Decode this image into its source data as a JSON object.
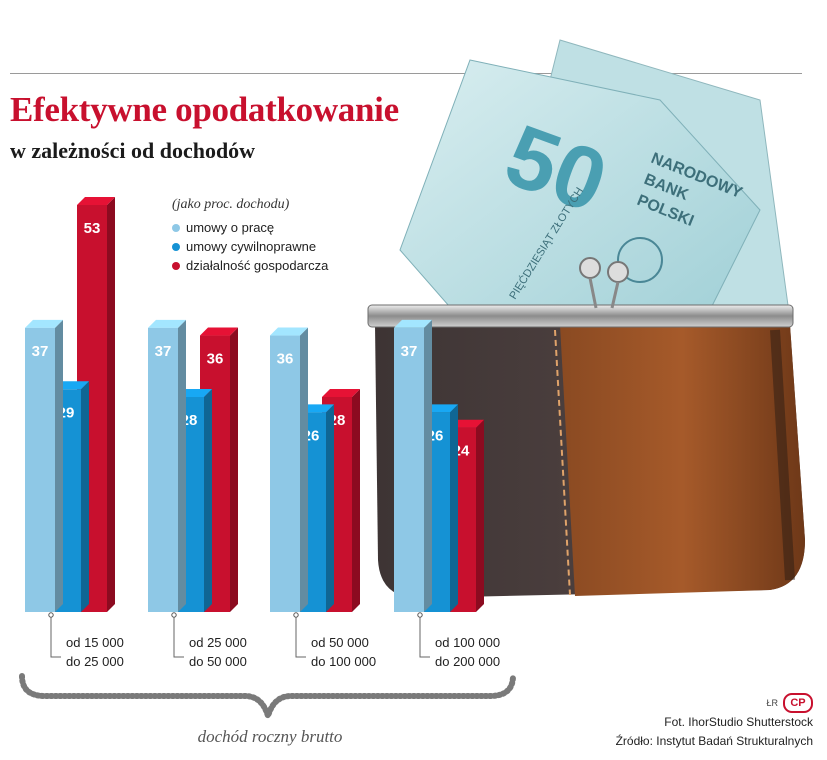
{
  "chart_data": {
    "type": "bar",
    "title": "Efektywne opodatkowanie",
    "subtitle": "w zależności od dochodów",
    "unit_note": "(jako proc. dochodu)",
    "xlabel": "dochód roczny brutto",
    "ylabel": "",
    "categories": [
      [
        "od 15 000",
        "do 25 000"
      ],
      [
        "od 25 000",
        "do 50 000"
      ],
      [
        "od 50 000",
        "do 100 000"
      ],
      [
        "od 100 000",
        "do 200 000"
      ]
    ],
    "series": [
      {
        "name": "umowy o pracę",
        "values": [
          37,
          37,
          36,
          37
        ],
        "color": "#8ec8e6"
      },
      {
        "name": "umowy cywilnoprawne",
        "values": [
          29,
          28,
          26,
          26
        ],
        "color": "#1592d4"
      },
      {
        "name": "działalność gospodarcza",
        "values": [
          53,
          36,
          28,
          24
        ],
        "color": "#c8102e"
      }
    ],
    "ylim": [
      0,
      53
    ],
    "grid": false,
    "legend_position": "top"
  },
  "credits": {
    "initials": "ŁR",
    "logo": "CP",
    "photo": "Fot. IhorStudio Shutterstock",
    "source": "Źródło: Instytut Badań Strukturalnych"
  },
  "illustration": {
    "icon": "wallet-with-banknotes-photo",
    "banknote_denomination": "50",
    "banknote_text": [
      "NARODOWY",
      "BANK",
      "POLSKI",
      "PIĘĆDZIESIĄT ZŁOTYCH"
    ]
  }
}
